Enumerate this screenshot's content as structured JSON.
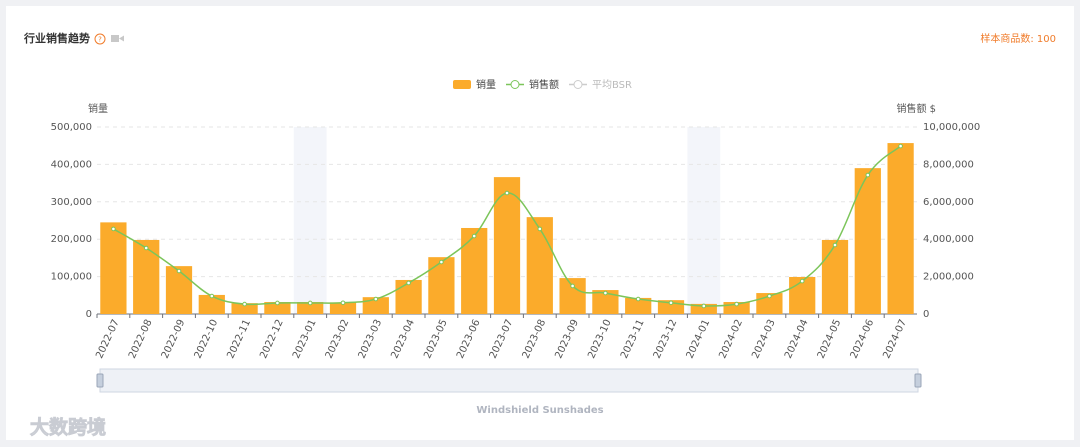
{
  "header": {
    "title": "行业销售趋势",
    "sample_count": "样本商品数: 100"
  },
  "watermark": "大数跨境",
  "chart_data": {
    "type": "bar",
    "y_label": "销量",
    "y2_label": "销售额 $",
    "slider_label": "Windshield Sunshades",
    "categories": [
      "2022-07",
      "2022-08",
      "2022-09",
      "2022-10",
      "2022-11",
      "2022-12",
      "2023-01",
      "2023-02",
      "2023-03",
      "2023-04",
      "2023-05",
      "2023-06",
      "2023-07",
      "2023-08",
      "2023-09",
      "2023-10",
      "2023-11",
      "2023-12",
      "2024-01",
      "2024-02",
      "2024-03",
      "2024-04",
      "2024-05",
      "2024-06",
      "2024-07"
    ],
    "series": [
      {
        "name": "销量",
        "type": "bar",
        "color": "#fbab2b",
        "values": [
          245000,
          198000,
          128000,
          51000,
          29000,
          32000,
          32000,
          31000,
          45000,
          91000,
          152000,
          230000,
          366000,
          259000,
          96000,
          64000,
          43000,
          37000,
          27000,
          32000,
          56000,
          99000,
          198000,
          390000,
          457000
        ]
      },
      {
        "name": "销售额",
        "type": "line",
        "axis": "y2",
        "color": "#7cc55a",
        "values": [
          4550000,
          3530000,
          2300000,
          960000,
          530000,
          590000,
          590000,
          600000,
          800000,
          1660000,
          2780000,
          4170000,
          6470000,
          4550000,
          1500000,
          1120000,
          800000,
          600000,
          430000,
          530000,
          960000,
          1760000,
          3690000,
          7430000,
          8980000
        ]
      }
    ],
    "hidden_series": [
      {
        "name": "平均BSR",
        "color": "#cccccc"
      }
    ],
    "ylim": [
      0,
      500000
    ],
    "yticks": [
      0,
      {
        "value": 100000,
        "label": "100,000"
      },
      {
        "value": 200000,
        "label": "200,000"
      },
      {
        "value": 300000,
        "label": "300,000"
      },
      {
        "value": 400000,
        "label": "400,000"
      },
      {
        "value": 500000,
        "label": "500,000"
      }
    ],
    "y2lim": [
      0,
      10000000
    ],
    "y2ticks": [
      0,
      {
        "value": 2000000,
        "label": "2,000,000"
      },
      {
        "value": 4000000,
        "label": "4,000,000"
      },
      {
        "value": 6000000,
        "label": "6,000,000"
      },
      {
        "value": 8000000,
        "label": "8,000,000"
      },
      {
        "value": 10000000,
        "label": "10,000,000"
      }
    ],
    "grid": true
  }
}
